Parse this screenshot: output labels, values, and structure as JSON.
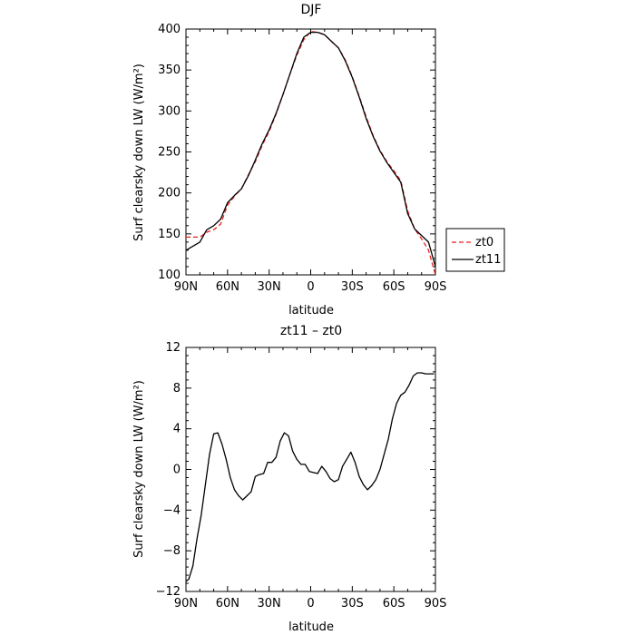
{
  "chart_data": [
    {
      "type": "line",
      "title": "DJF",
      "xlabel": "latitude",
      "ylabel": "Surf clearsky down LW (W/m²)",
      "xlim": [
        90,
        -90
      ],
      "ylim": [
        100,
        400
      ],
      "x_tick_values": [
        90,
        60,
        30,
        0,
        -30,
        -60,
        -90
      ],
      "x_tick_labels": [
        "90N",
        "60N",
        "30N",
        "0",
        "30S",
        "60S",
        "90S"
      ],
      "y_tick_values": [
        100,
        150,
        200,
        250,
        300,
        350,
        400
      ],
      "y_tick_labels": [
        "100",
        "150",
        "200",
        "250",
        "300",
        "350",
        "400"
      ],
      "legend": "outside-right",
      "series": [
        {
          "name": "zt0",
          "color": "#e8211d",
          "dash": "dashed",
          "x": [
            90,
            85,
            80,
            75,
            70,
            65,
            60,
            55,
            50,
            45,
            40,
            35,
            30,
            25,
            20,
            15,
            10,
            5,
            0,
            -5,
            -10,
            -15,
            -20,
            -25,
            -30,
            -35,
            -40,
            -45,
            -50,
            -55,
            -60,
            -65,
            -70,
            -75,
            -80,
            -85,
            -90
          ],
          "values": [
            146,
            146,
            146,
            152,
            155,
            162,
            185,
            196,
            205,
            222,
            238,
            258,
            275,
            296,
            320,
            345,
            368,
            387,
            397,
            396,
            393,
            385,
            377,
            362,
            342,
            318,
            293,
            270,
            252,
            238,
            227,
            215,
            178,
            156,
            144,
            130,
            100
          ]
        },
        {
          "name": "zt11",
          "color": "#000000",
          "dash": "solid",
          "x": [
            90,
            85,
            80,
            75,
            70,
            65,
            60,
            55,
            50,
            45,
            40,
            35,
            30,
            25,
            20,
            15,
            10,
            5,
            0,
            -5,
            -10,
            -15,
            -20,
            -25,
            -30,
            -35,
            -40,
            -45,
            -50,
            -55,
            -60,
            -65,
            -70,
            -75,
            -80,
            -85,
            -90
          ],
          "values": [
            130,
            135,
            140,
            155,
            160,
            168,
            188,
            197,
            205,
            221,
            240,
            260,
            277,
            297,
            320,
            345,
            370,
            390,
            396,
            396,
            393,
            385,
            377,
            361,
            341,
            317,
            291,
            269,
            251,
            237,
            225,
            213,
            175,
            156,
            148,
            140,
            110
          ]
        }
      ]
    },
    {
      "type": "line",
      "title": "zt11 – zt0",
      "xlabel": "latitude",
      "ylabel": "Surf clearsky down LW (W/m²)",
      "xlim": [
        90,
        -90
      ],
      "ylim": [
        -12,
        12
      ],
      "x_tick_values": [
        90,
        60,
        30,
        0,
        -30,
        -60,
        -90
      ],
      "x_tick_labels": [
        "90N",
        "60N",
        "30N",
        "0",
        "30S",
        "60S",
        "90S"
      ],
      "y_tick_values": [
        -12,
        -8,
        -4,
        0,
        4,
        8,
        12
      ],
      "y_tick_labels": [
        "−12",
        "−8",
        "−4",
        "0",
        "4",
        "8",
        "12"
      ],
      "series": [
        {
          "color": "#000000",
          "x": [
            90,
            88,
            85,
            82,
            79,
            76,
            73,
            70,
            67,
            64,
            61,
            58,
            55,
            52,
            49,
            46,
            43,
            40,
            37,
            34,
            31,
            28,
            25,
            22,
            19,
            16,
            13,
            10,
            7,
            4,
            1,
            -2,
            -5,
            -8,
            -11,
            -14,
            -17,
            -20,
            -23,
            -26,
            -29,
            -32,
            -35,
            -38,
            -41,
            -44,
            -47,
            -50,
            -53,
            -56,
            -59,
            -62,
            -65,
            -68,
            -71,
            -74,
            -77,
            -80,
            -83,
            -86,
            -89
          ],
          "values": [
            -11,
            -10.8,
            -9.5,
            -6.8,
            -4.5,
            -1.5,
            1.5,
            3.5,
            3.6,
            2.5,
            1.0,
            -0.8,
            -2.0,
            -2.6,
            -3.0,
            -2.6,
            -2.2,
            -0.7,
            -0.5,
            -0.4,
            0.7,
            0.7,
            1.2,
            2.8,
            3.6,
            3.3,
            1.8,
            1.0,
            0.5,
            0.5,
            -0.2,
            -0.3,
            -0.4,
            0.3,
            -0.2,
            -0.9,
            -1.2,
            -1.0,
            0.3,
            1.0,
            1.7,
            0.7,
            -0.7,
            -1.5,
            -2.0,
            -1.6,
            -1.0,
            0.0,
            1.5,
            3.0,
            5.0,
            6.5,
            7.3,
            7.6,
            8.3,
            9.2,
            9.5,
            9.5,
            9.4,
            9.4,
            9.4
          ]
        }
      ]
    }
  ]
}
